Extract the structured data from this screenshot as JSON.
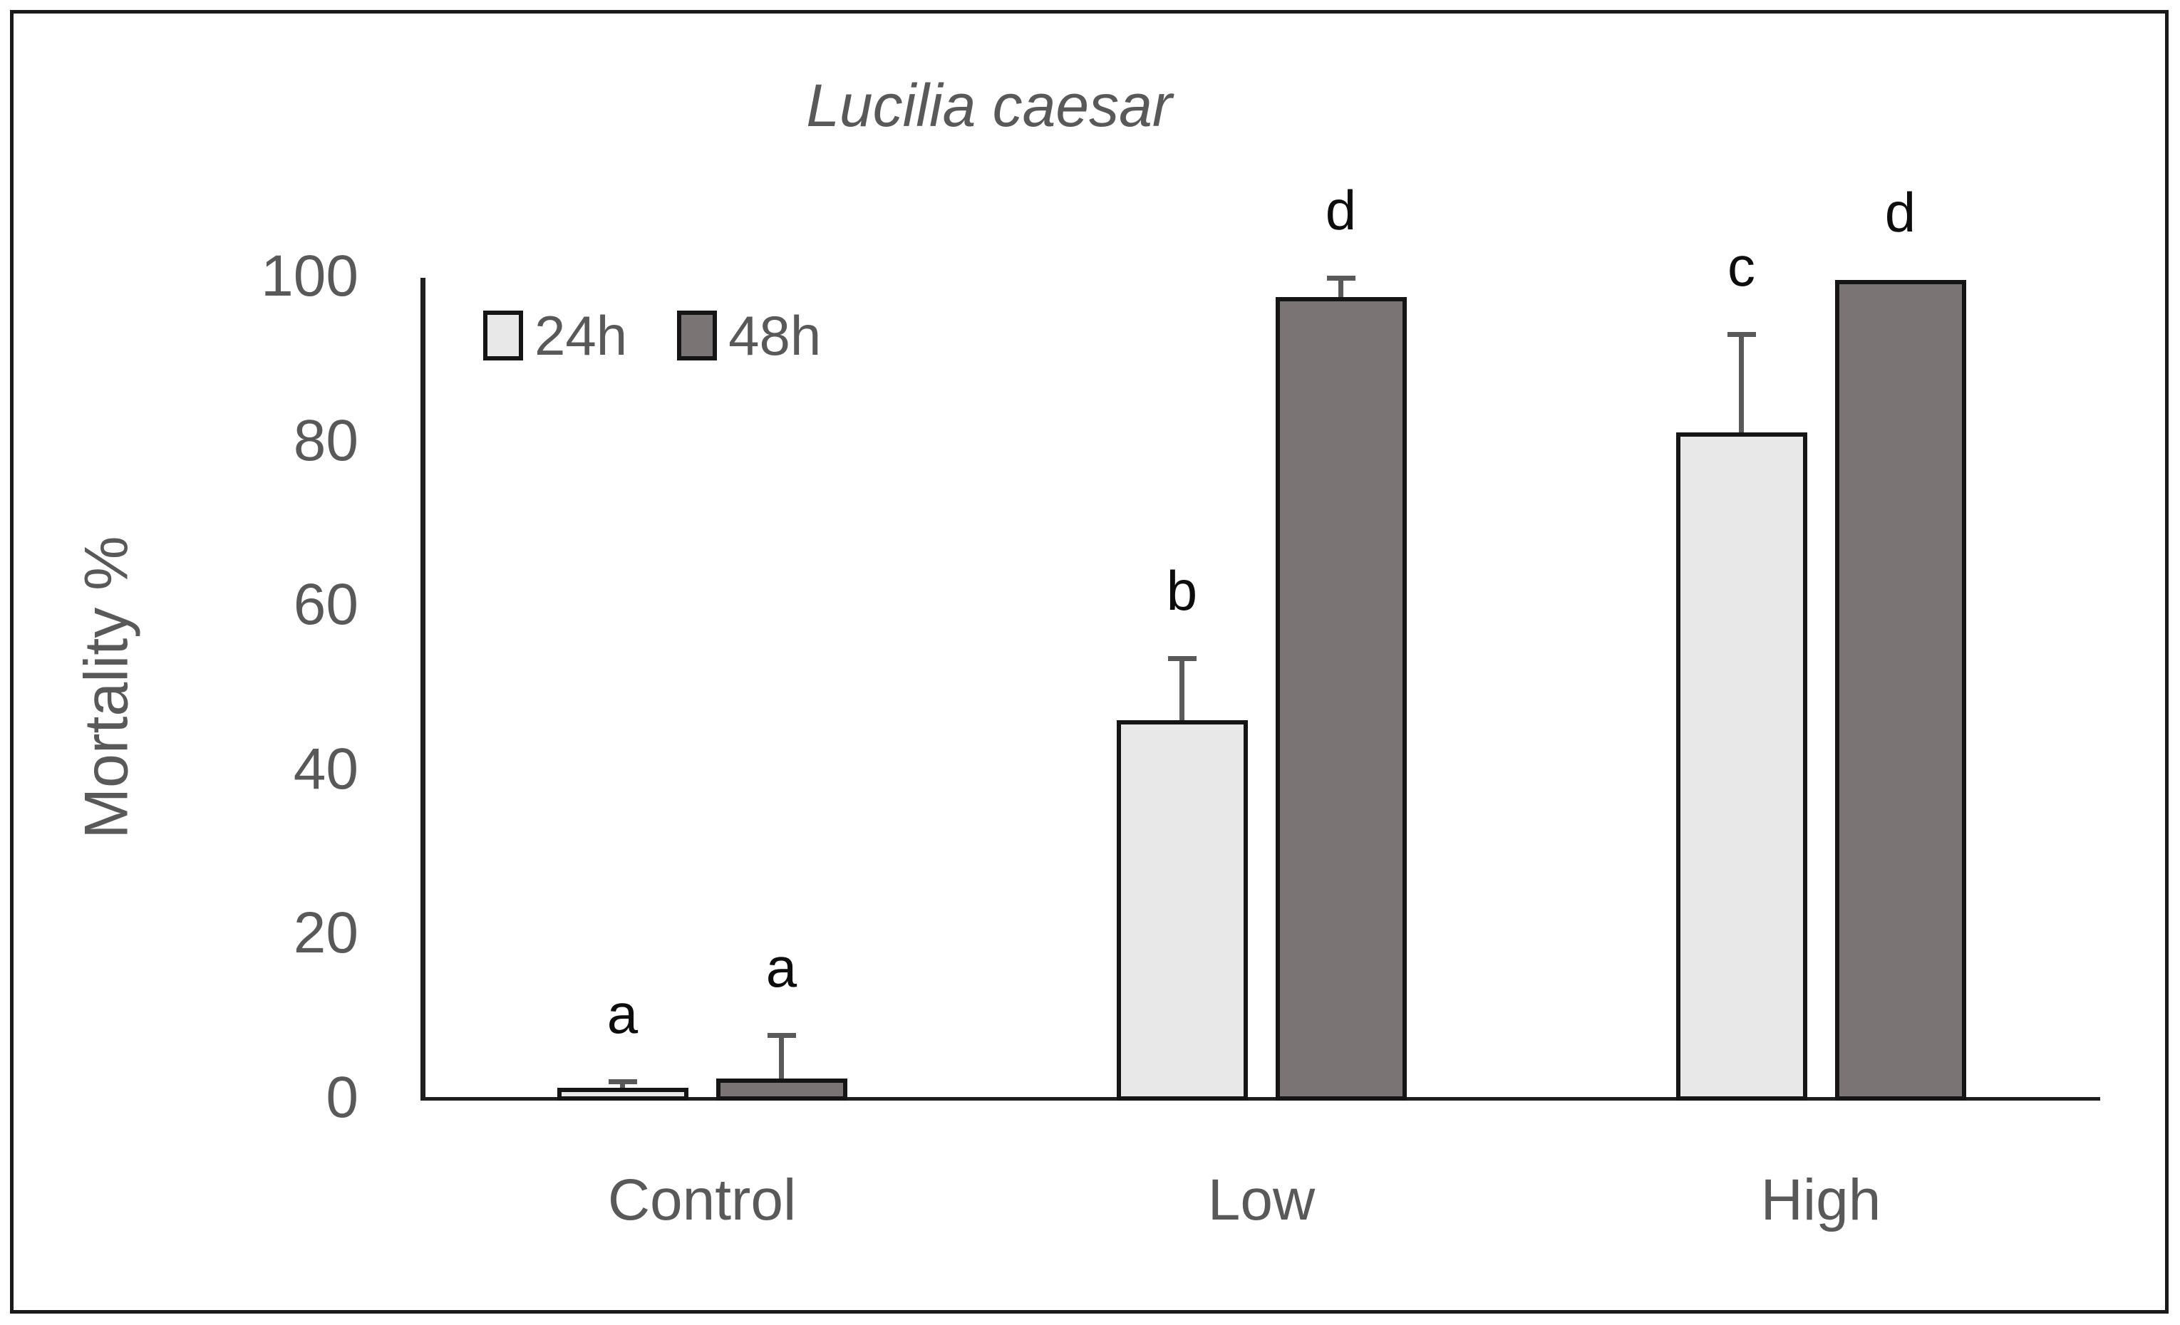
{
  "chart_data": {
    "type": "bar",
    "title": "Lucilia caesar",
    "ylabel": "Mortality %",
    "xlabel": "",
    "categories": [
      "Control",
      "Low",
      "High"
    ],
    "series": [
      {
        "name": "24h",
        "color": "#e8e8e8",
        "values": [
          1.2,
          46,
          81
        ],
        "error_top": [
          2,
          53.5,
          93
        ],
        "letters": [
          "a",
          "b",
          "c"
        ]
      },
      {
        "name": "48h",
        "color": "#7a7474",
        "values": [
          2.3,
          97.5,
          99.6
        ],
        "error_top": [
          7.6,
          99.8,
          null
        ],
        "letters": [
          "a",
          "d",
          "d"
        ]
      }
    ],
    "ylim": [
      0,
      100
    ],
    "yticks": [
      0,
      20,
      40,
      60,
      80,
      100
    ],
    "grid": false,
    "legend_position": "inside-top-left",
    "colors": {
      "axis_text": "#595959",
      "axis_line": "#1f1f1f",
      "error_bar": "#595959",
      "letter": "#0d0d0d",
      "frame_border": "#1a1a1a",
      "background": "#ffffff"
    }
  }
}
